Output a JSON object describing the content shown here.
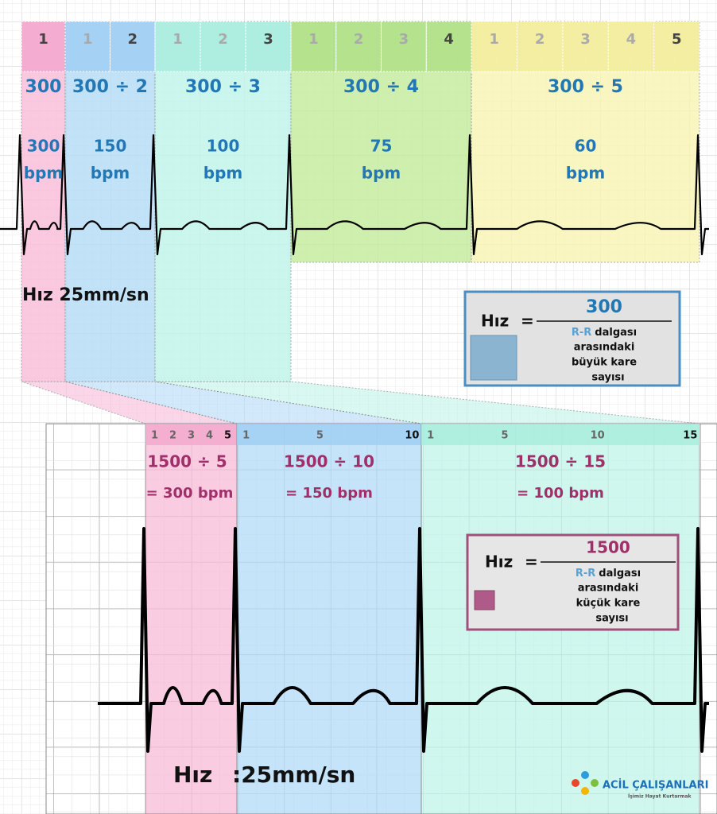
{
  "top": {
    "groups": [
      {
        "cells": [
          "1"
        ],
        "formula": "300",
        "rate": "300",
        "unit": "bpm"
      },
      {
        "cells": [
          "1",
          "2"
        ],
        "formula": "300 ÷ 2",
        "rate": "150",
        "unit": "bpm"
      },
      {
        "cells": [
          "1",
          "2",
          "3"
        ],
        "formula": "300 ÷ 3",
        "rate": "100",
        "unit": "bpm"
      },
      {
        "cells": [
          "1",
          "2",
          "3",
          "4"
        ],
        "formula": "300 ÷ 4",
        "rate": "75",
        "unit": "bpm"
      },
      {
        "cells": [
          "1",
          "2",
          "3",
          "4",
          "5"
        ],
        "formula": "300 ÷ 5",
        "rate": "60",
        "unit": "bpm"
      }
    ],
    "speed": "Hız 25mm/sn",
    "box": {
      "label": "Hız",
      "equals": "=",
      "numerator": "300",
      "rr": "R-R",
      "lines": [
        "dalgası",
        "arasındaki",
        "büyük kare",
        "sayısı"
      ]
    }
  },
  "bottom": {
    "groups": [
      {
        "cells": [
          "1",
          "2",
          "3",
          "4",
          "5"
        ],
        "formula": "1500 ÷ 5",
        "result": "= 300 bpm"
      },
      {
        "cells": [
          "1",
          "5",
          "10"
        ],
        "formula": "1500 ÷ 10",
        "result": "= 150 bpm"
      },
      {
        "cells": [
          "1",
          "5",
          "10",
          "15"
        ],
        "formula": "1500 ÷ 15",
        "result": "= 100 bpm"
      }
    ],
    "box": {
      "label": "Hız",
      "equals": "=",
      "numerator": "1500",
      "rr": "R-R",
      "lines": [
        "dalgası",
        "arasındaki",
        "küçük kare",
        "sayısı"
      ]
    },
    "speed_label": "Hız",
    "speed_value": ":25mm/sn"
  },
  "logo": {
    "name": "ACİL ÇALIŞANLARI",
    "tagline": "İşimiz Hayat Kurtarmak"
  }
}
